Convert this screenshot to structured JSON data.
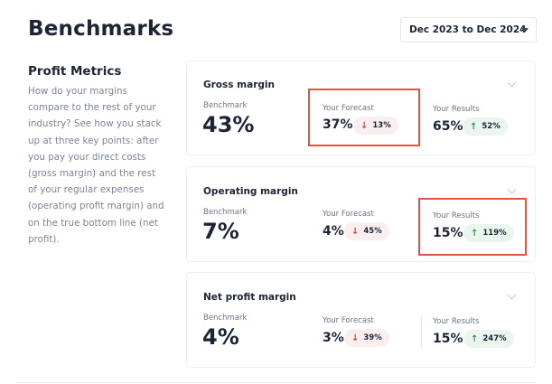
{
  "header": {
    "title": "Benchmarks",
    "date_range": "Dec 2023 to Dec 2024"
  },
  "sidebar": {
    "title": "Profit Metrics",
    "description_lines": [
      "How do your margins",
      "compare to the rest of your",
      "industry? See how you stack",
      "up at three key points: after",
      "you pay your direct costs",
      "(gross margin) and the rest",
      "of your regular expenses",
      "(operating profit margin) and",
      "on the true bottom line (net",
      "profit)."
    ]
  },
  "cards": [
    {
      "title": "Gross margin",
      "benchmark_label": "Benchmark",
      "benchmark_value": "43%",
      "forecast_label": "Your Forecast",
      "forecast_value": "37%",
      "forecast_change": "13%",
      "forecast_direction": "down",
      "results_label": "Your Results",
      "results_value": "65%",
      "results_change": "52%",
      "results_direction": "up"
    },
    {
      "title": "Operating margin",
      "benchmark_label": "Benchmark",
      "benchmark_value": "7%",
      "forecast_label": "Your Forecast",
      "forecast_value": "4%",
      "forecast_change": "45%",
      "forecast_direction": "down",
      "results_label": "Your Results",
      "results_value": "15%",
      "results_change": "119%",
      "results_direction": "up"
    },
    {
      "title": "Net profit margin",
      "benchmark_label": "Benchmark",
      "benchmark_value": "4%",
      "forecast_label": "Your Forecast",
      "forecast_value": "3%",
      "forecast_change": "39%",
      "forecast_direction": "down",
      "results_label": "Your Results",
      "results_value": "15%",
      "results_change": "247%",
      "results_direction": "up"
    }
  ],
  "icons": {
    "down_arrow": "arrow-down-icon",
    "up_arrow": "arrow-up-icon",
    "chevron": "chevron-down-icon",
    "caret": "caret-down-icon"
  },
  "colors": {
    "highlight": "#e0553f",
    "down": "#d64545",
    "up": "#2a9a58",
    "text": "#1b2536",
    "muted": "#7b8596"
  }
}
